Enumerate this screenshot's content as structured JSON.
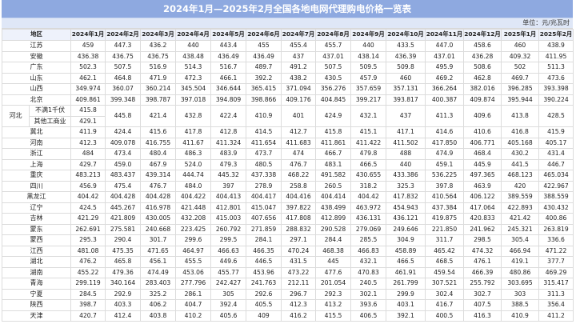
{
  "title": "2024年1月—2025年2月全国各地电网代理购电价格一览表",
  "unit": "单位：元/兆瓦时",
  "table": {
    "region_header": "地区",
    "columns": [
      "2024年1月",
      "2024年2月",
      "2024年3月",
      "2024年4月",
      "2024年5月",
      "2024年6月",
      "2024年7月",
      "2024年8月",
      "2024年9月",
      "2024年10月",
      "2024年11月",
      "2024年12月",
      "2025年1月",
      "2025年2月"
    ],
    "rows": [
      {
        "region": "江苏",
        "values": [
          "459",
          "447.3",
          "436.2",
          "440",
          "443.4",
          "455",
          "455.4",
          "455.7",
          "440",
          "433.5",
          "447.0",
          "458.6",
          "460",
          "438.9"
        ]
      },
      {
        "region": "安徽",
        "values": [
          "436.38",
          "436.75",
          "436.75",
          "438.48",
          "436.49",
          "436.49",
          "437",
          "437.01",
          "438.14",
          "436.39",
          "437.01",
          "436.28",
          "409.32",
          "411.95"
        ]
      },
      {
        "region": "广东",
        "values": [
          "502.3",
          "507.5",
          "516.9",
          "514.3",
          "516.7",
          "489.7",
          "491.2",
          "507.5",
          "509.5",
          "509.8",
          "495.9",
          "508.6",
          "502",
          "511.3"
        ]
      },
      {
        "region": "山东",
        "values": [
          "462.1",
          "464.8",
          "471.9",
          "472.3",
          "466.1",
          "392.2",
          "438.2",
          "430.5",
          "457.9",
          "460",
          "469.2",
          "462.8",
          "469.7",
          "473.6"
        ]
      },
      {
        "region": "山西",
        "values": [
          "349.974",
          "360.07",
          "360.214",
          "345.504",
          "346.644",
          "365.415",
          "371.094",
          "356.276",
          "357.659",
          "357.131",
          "366.264",
          "382.016",
          "396.285",
          "393.398"
        ]
      },
      {
        "region": "北京",
        "values": [
          "409.861",
          "399.348",
          "398.787",
          "397.018",
          "394.809",
          "398.866",
          "409.176",
          "404.845",
          "399.217",
          "393.817",
          "400.387",
          "409.874",
          "395.944",
          "390.224"
        ]
      }
    ],
    "hebei": {
      "region": "河北",
      "sub1": "不满1千伏",
      "sub1_jan": "415.8",
      "sub2": "其他工商业",
      "sub2_jan": "429.1",
      "values": [
        "445.8",
        "421.4",
        "432.8",
        "422.4",
        "410.9",
        "401",
        "424.9",
        "432.1",
        "437",
        "411.3",
        "409.6",
        "413.8",
        "428.5"
      ]
    },
    "rows2": [
      {
        "region": "冀北",
        "values": [
          "411.9",
          "424.4",
          "415.6",
          "417.8",
          "412.8",
          "414.5",
          "412.7",
          "415.8",
          "415.1",
          "417.1",
          "414.6",
          "410.6",
          "416.8",
          "415.9"
        ]
      },
      {
        "region": "河南",
        "values": [
          "412.3",
          "409.078",
          "416.755",
          "411.67",
          "411.324",
          "411.654",
          "411.683",
          "411.861",
          "411.422",
          "411.502",
          "417.850",
          "406.771",
          "405.168",
          "405.17"
        ]
      },
      {
        "region": "浙江",
        "values": [
          "484",
          "473.4",
          "480.4",
          "486.3",
          "483.9",
          "473.7",
          "474",
          "466.7",
          "479.8",
          "488",
          "474.9",
          "468.4",
          "430.2",
          "431.4"
        ]
      },
      {
        "region": "上海",
        "values": [
          "429.7",
          "459.0",
          "467.9",
          "524.0",
          "479.3",
          "480.5",
          "476.7",
          "483.1",
          "466.5",
          "440",
          "459.1",
          "445.9",
          "441.5",
          "446.7"
        ]
      },
      {
        "region": "重庆",
        "values": [
          "483.213",
          "483.437",
          "439.314",
          "444.74",
          "445.32",
          "437.338",
          "468.22",
          "491.582",
          "430.655",
          "433.386",
          "536.225",
          "497.365",
          "468.123",
          "465.034"
        ]
      },
      {
        "region": "四川",
        "values": [
          "456.9",
          "475.4",
          "476.7",
          "484.0",
          "397",
          "278.9",
          "258.8",
          "260.5",
          "318.2",
          "325.3",
          "397.8",
          "463.9",
          "420",
          "422.967"
        ]
      },
      {
        "region": "黑龙江",
        "values": [
          "404.42",
          "404.428",
          "404.428",
          "404.422",
          "404.413",
          "404.417",
          "404.416",
          "404.414",
          "404.42",
          "417.832",
          "410.564",
          "406.122",
          "389.559",
          "388.559"
        ]
      },
      {
        "region": "辽宁",
        "values": [
          "424.5",
          "445.267",
          "416.978",
          "421.448",
          "412.801",
          "415.047",
          "397.822",
          "438.499",
          "463.972",
          "454.943",
          "437.384",
          "417.064",
          "422.893",
          "430.432"
        ]
      },
      {
        "region": "吉林",
        "values": [
          "421.29",
          "421.809",
          "430.005",
          "432.208",
          "415.003",
          "407.656",
          "417.808",
          "412.899",
          "436.131",
          "436.121",
          "419.875",
          "420.833",
          "421.42",
          "400.86"
        ]
      },
      {
        "region": "蒙东",
        "values": [
          "262.691",
          "275.581",
          "240.668",
          "223.425",
          "260.792",
          "271.859",
          "288.832",
          "290.528",
          "279.069",
          "249.646",
          "221.850",
          "241.962",
          "245.321",
          "263.819"
        ]
      },
      {
        "region": "蒙西",
        "values": [
          "295.3",
          "290.4",
          "301.7",
          "299.6",
          "299.5",
          "284.1",
          "297.1",
          "284.4",
          "285.5",
          "304.9",
          "311.7",
          "298.5",
          "305.4",
          "336.6"
        ]
      },
      {
        "region": "江西",
        "values": [
          "481.08",
          "475.35",
          "471.65",
          "464.97",
          "466.63",
          "466.35",
          "470.24",
          "468.38",
          "466.83",
          "458.89",
          "465.42",
          "474.32",
          "466.94",
          "471.22"
        ]
      },
      {
        "region": "湖北",
        "values": [
          "476.2",
          "465.8",
          "456.1",
          "455.5",
          "449.6",
          "446.5",
          "431.5",
          "445",
          "432.1",
          "466.5",
          "468.5",
          "476.1",
          "419.1",
          "377.7"
        ]
      },
      {
        "region": "湖南",
        "values": [
          "455.22",
          "479.36",
          "474.49",
          "453.06",
          "455.77",
          "453.96",
          "473.22",
          "477.6",
          "470.83",
          "461.91",
          "459.54",
          "466.39",
          "480.86",
          "469.29"
        ]
      },
      {
        "region": "青海",
        "values": [
          "299.119",
          "340.164",
          "283.403",
          "277.796",
          "242.427",
          "241.763",
          "212.11",
          "201.054",
          "240.5",
          "261.799",
          "307.521",
          "255.792",
          "303.695",
          "315.417"
        ]
      },
      {
        "region": "宁夏",
        "values": [
          "284.5",
          "292.9",
          "325.2",
          "286.1",
          "305",
          "292.6",
          "296.7",
          "292.3",
          "302.1",
          "299.9",
          "302.4",
          "302.7",
          "303",
          "311.3"
        ]
      },
      {
        "region": "陕西",
        "values": [
          "398.7",
          "403.3",
          "406.2",
          "404.7",
          "392.4",
          "405.5",
          "412.3",
          "413.2",
          "393.6",
          "403.1",
          "416.7",
          "407.5",
          "388.5",
          "356.4"
        ]
      },
      {
        "region": "天津",
        "values": [
          "420.7",
          "412.4",
          "403.8",
          "410.2",
          "405.6",
          "409",
          "416.2",
          "415.5",
          "406.5",
          "392.1",
          "400.5",
          "416.3",
          "410.9",
          "411.2"
        ]
      }
    ]
  },
  "colors": {
    "title_bg": "#8ea9e0",
    "unit_bg": "#dfe7f7",
    "header_bg": "#eef2fb",
    "grid": "#dcdcdc"
  }
}
